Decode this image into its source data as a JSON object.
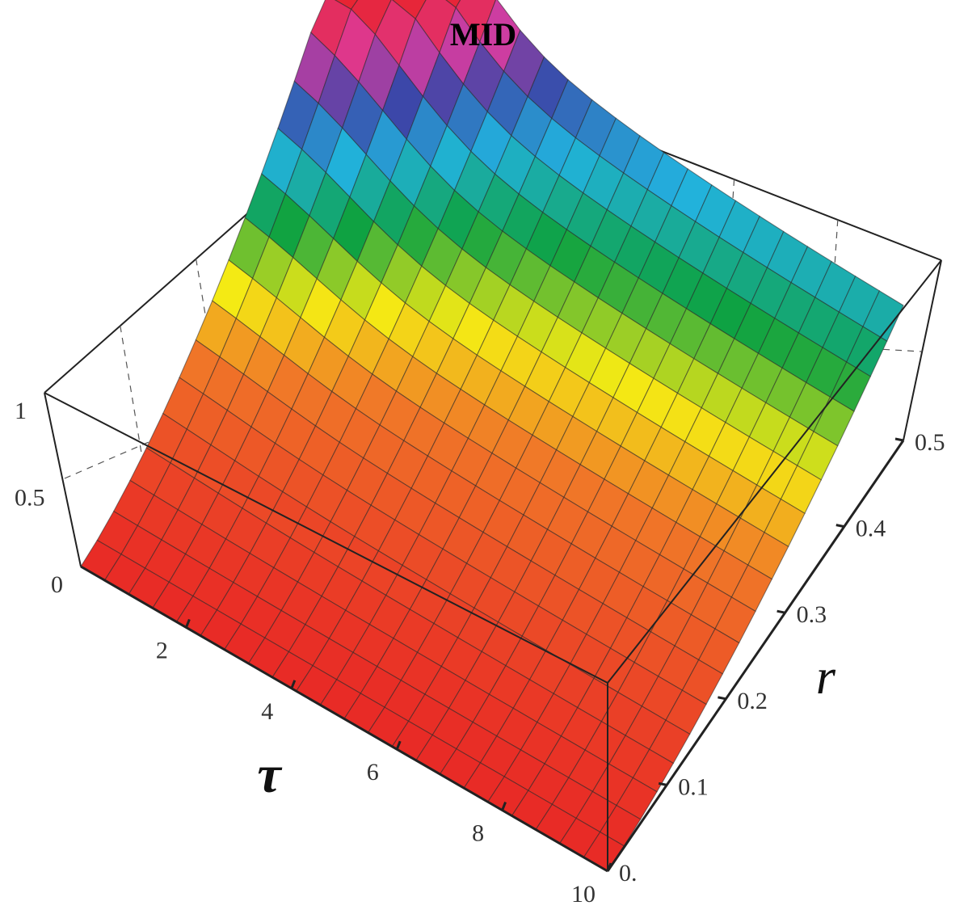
{
  "chart_data": {
    "type": "surface3d",
    "title": "MID",
    "xlabel": "τ",
    "ylabel": "r",
    "zlabel": "",
    "x_ticks": [
      "2",
      "4",
      "6",
      "8",
      "10"
    ],
    "y_ticks": [
      "0.",
      "0.1",
      "0.2",
      "0.3",
      "0.4",
      "0.5"
    ],
    "z_ticks": [
      "0",
      "0.5",
      "1"
    ],
    "xlim": [
      0,
      10
    ],
    "ylim": [
      0,
      0.5
    ],
    "zlim": [
      0,
      1
    ],
    "box": true,
    "mesh": true,
    "colormap": "rainbow: red (low) → orange → yellow → green → cyan → blue → magenta → red (high)",
    "surface_samples": {
      "description": "approximate surface heights z(τ, r) read from the plot",
      "r": [
        0,
        0.1,
        0.2,
        0.3,
        0.4,
        0.5
      ],
      "tau": [
        0,
        2,
        4,
        6,
        8,
        10
      ],
      "z": [
        [
          0.0,
          0.0,
          0.0,
          0.0,
          0.0,
          0.0
        ],
        [
          0.13,
          0.07,
          0.05,
          0.04,
          0.03,
          0.03
        ],
        [
          0.35,
          0.22,
          0.16,
          0.13,
          0.11,
          0.1
        ],
        [
          0.62,
          0.45,
          0.36,
          0.31,
          0.28,
          0.26
        ],
        [
          0.85,
          0.7,
          0.58,
          0.5,
          0.46,
          0.43
        ],
        [
          1.0,
          0.95,
          0.8,
          0.69,
          0.6,
          0.55
        ]
      ]
    }
  }
}
